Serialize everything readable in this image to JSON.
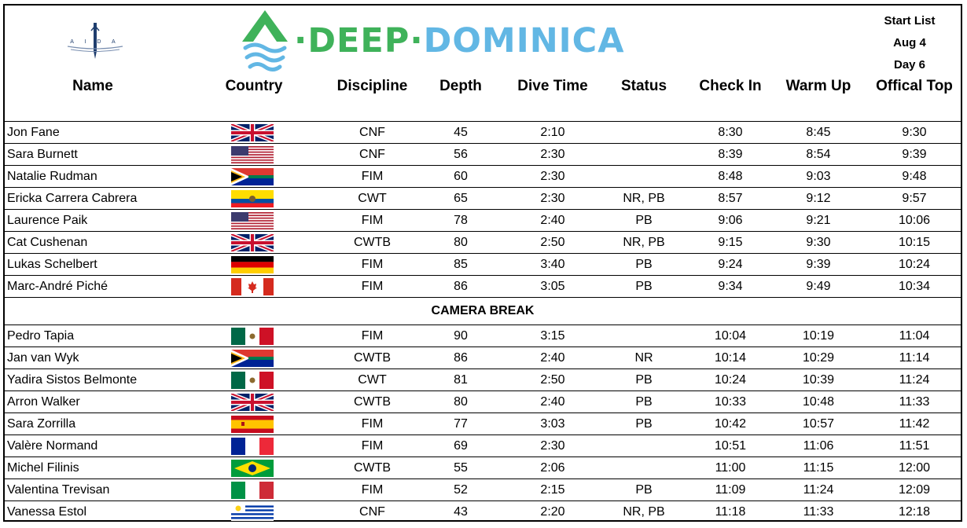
{
  "header": {
    "aida_text": "A I D A",
    "brand_deep": "DEEP",
    "brand_dominica": "DOMINICA",
    "brand_dot": "·",
    "start_list": "Start List",
    "date": "Aug 4",
    "day": "Day 6"
  },
  "columns": {
    "name": "Name",
    "country": "Country",
    "discipline": "Discipline",
    "depth": "Depth",
    "dive_time": "Dive Time",
    "status": "Status",
    "check_in": "Check In",
    "warm_up": "Warm Up",
    "official_top": "Offical Top"
  },
  "group1": [
    {
      "name": "Jon Fane",
      "flag": "uk",
      "discipline": "CNF",
      "depth": "45",
      "dive_time": "2:10",
      "status": "",
      "check_in": "8:30",
      "warm_up": "8:45",
      "top": "9:30"
    },
    {
      "name": "Sara Burnett",
      "flag": "usa",
      "discipline": "CNF",
      "depth": "56",
      "dive_time": "2:30",
      "status": "",
      "check_in": "8:39",
      "warm_up": "8:54",
      "top": "9:39"
    },
    {
      "name": "Natalie Rudman",
      "flag": "south-africa",
      "discipline": "FIM",
      "depth": "60",
      "dive_time": "2:30",
      "status": "",
      "check_in": "8:48",
      "warm_up": "9:03",
      "top": "9:48"
    },
    {
      "name": "Ericka Carrera Cabrera",
      "flag": "ecuador",
      "discipline": "CWT",
      "depth": "65",
      "dive_time": "2:30",
      "status": "NR, PB",
      "check_in": "8:57",
      "warm_up": "9:12",
      "top": "9:57"
    },
    {
      "name": "Laurence Paik",
      "flag": "usa",
      "discipline": "FIM",
      "depth": "78",
      "dive_time": "2:40",
      "status": "PB",
      "check_in": "9:06",
      "warm_up": "9:21",
      "top": "10:06"
    },
    {
      "name": "Cat Cushenan",
      "flag": "uk",
      "discipline": "CWTB",
      "depth": "80",
      "dive_time": "2:50",
      "status": "NR, PB",
      "check_in": "9:15",
      "warm_up": "9:30",
      "top": "10:15"
    },
    {
      "name": "Lukas Schelbert",
      "flag": "germany",
      "discipline": "FIM",
      "depth": "85",
      "dive_time": "3:40",
      "status": "PB",
      "check_in": "9:24",
      "warm_up": "9:39",
      "top": "10:24"
    },
    {
      "name": "Marc-André Piché",
      "flag": "canada",
      "discipline": "FIM",
      "depth": "86",
      "dive_time": "3:05",
      "status": "PB",
      "check_in": "9:34",
      "warm_up": "9:49",
      "top": "10:34"
    }
  ],
  "break_label": "CAMERA BREAK",
  "group2": [
    {
      "name": "Pedro Tapia",
      "flag": "mexico",
      "discipline": "FIM",
      "depth": "90",
      "dive_time": "3:15",
      "status": "",
      "check_in": "10:04",
      "warm_up": "10:19",
      "top": "11:04"
    },
    {
      "name": "Jan van Wyk",
      "flag": "south-africa",
      "discipline": "CWTB",
      "depth": "86",
      "dive_time": "2:40",
      "status": "NR",
      "check_in": "10:14",
      "warm_up": "10:29",
      "top": "11:14"
    },
    {
      "name": "Yadira Sistos Belmonte",
      "flag": "mexico",
      "discipline": "CWT",
      "depth": "81",
      "dive_time": "2:50",
      "status": "PB",
      "check_in": "10:24",
      "warm_up": "10:39",
      "top": "11:24"
    },
    {
      "name": "Arron Walker",
      "flag": "uk",
      "discipline": "CWTB",
      "depth": "80",
      "dive_time": "2:40",
      "status": "PB",
      "check_in": "10:33",
      "warm_up": "10:48",
      "top": "11:33"
    },
    {
      "name": "Sara Zorrilla",
      "flag": "spain",
      "discipline": "FIM",
      "depth": "77",
      "dive_time": "3:03",
      "status": "PB",
      "check_in": "10:42",
      "warm_up": "10:57",
      "top": "11:42"
    },
    {
      "name": "Valère Normand",
      "flag": "france",
      "discipline": "FIM",
      "depth": "69",
      "dive_time": "2:30",
      "status": "",
      "check_in": "10:51",
      "warm_up": "11:06",
      "top": "11:51"
    },
    {
      "name": "Michel Filinis",
      "flag": "brazil",
      "discipline": "CWTB",
      "depth": "55",
      "dive_time": "2:06",
      "status": "",
      "check_in": "11:00",
      "warm_up": "11:15",
      "top": "12:00"
    },
    {
      "name": "Valentina Trevisan",
      "flag": "italy",
      "discipline": "FIM",
      "depth": "52",
      "dive_time": "2:15",
      "status": "PB",
      "check_in": "11:09",
      "warm_up": "11:24",
      "top": "12:09"
    },
    {
      "name": "Vanessa Estol",
      "flag": "uruguay",
      "discipline": "CNF",
      "depth": "43",
      "dive_time": "2:20",
      "status": "NR, PB",
      "check_in": "11:18",
      "warm_up": "11:33",
      "top": "12:18"
    }
  ]
}
